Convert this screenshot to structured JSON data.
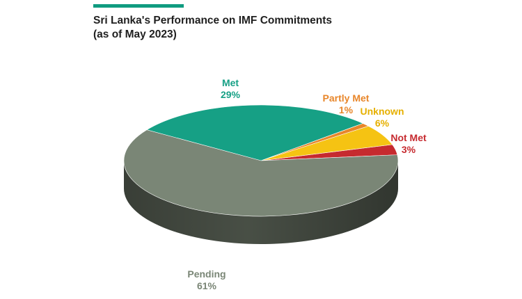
{
  "header": {
    "title_line1": "Sri Lanka's Performance on IMF Commitments",
    "title_line2": "(as of May 2023)",
    "accent_color": "#0f9b80"
  },
  "chart_data": {
    "type": "pie",
    "title": "Sri Lanka's Performance on IMF Commitments (as of May 2023)",
    "style": "3d-tilted",
    "slices": [
      {
        "name": "Met",
        "value": 29,
        "label": "29%",
        "color": "#16a085",
        "label_color": "#16a085"
      },
      {
        "name": "Partly Met",
        "value": 1,
        "label": "1%",
        "color": "#e8862a",
        "label_color": "#e8862a"
      },
      {
        "name": "Unknown",
        "value": 6,
        "label": "6%",
        "color": "#f5c313",
        "label_color": "#e6b000"
      },
      {
        "name": "Not Met",
        "value": 3,
        "label": "3%",
        "color": "#c62a2f",
        "label_color": "#c62a2f"
      },
      {
        "name": "Pending",
        "value": 61,
        "label": "61%",
        "color": "#7a8676",
        "label_color": "#7a8676"
      }
    ]
  }
}
